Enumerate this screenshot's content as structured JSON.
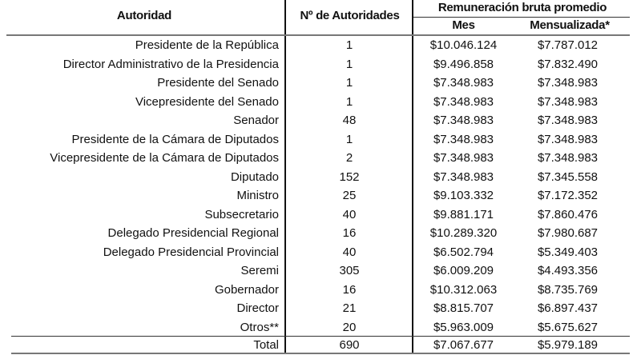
{
  "header": {
    "autoridad": "Autoridad",
    "n_autoridades": "Nº de Autoridades",
    "remuneracion": "Remuneración bruta promedio",
    "mes": "Mes",
    "mensualizada": "Mensualizada*"
  },
  "rows": [
    {
      "autoridad": "Presidente de la República",
      "n": "1",
      "mes": "$10.046.124",
      "mensualizada": "$7.787.012"
    },
    {
      "autoridad": "Director Administrativo de la Presidencia",
      "n": "1",
      "mes": "$9.496.858",
      "mensualizada": "$7.832.490"
    },
    {
      "autoridad": "Presidente del Senado",
      "n": "1",
      "mes": "$7.348.983",
      "mensualizada": "$7.348.983"
    },
    {
      "autoridad": "Vicepresidente del Senado",
      "n": "1",
      "mes": "$7.348.983",
      "mensualizada": "$7.348.983"
    },
    {
      "autoridad": "Senador",
      "n": "48",
      "mes": "$7.348.983",
      "mensualizada": "$7.348.983"
    },
    {
      "autoridad": "Presidente de la Cámara de Diputados",
      "n": "1",
      "mes": "$7.348.983",
      "mensualizada": "$7.348.983"
    },
    {
      "autoridad": "Vicepresidente de la Cámara de Diputados",
      "n": "2",
      "mes": "$7.348.983",
      "mensualizada": "$7.348.983"
    },
    {
      "autoridad": "Diputado",
      "n": "152",
      "mes": "$7.348.983",
      "mensualizada": "$7.345.558"
    },
    {
      "autoridad": "Ministro",
      "n": "25",
      "mes": "$9.103.332",
      "mensualizada": "$7.172.352"
    },
    {
      "autoridad": "Subsecretario",
      "n": "40",
      "mes": "$9.881.171",
      "mensualizada": "$7.860.476"
    },
    {
      "autoridad": "Delegado Presidencial Regional",
      "n": "16",
      "mes": "$10.289.320",
      "mensualizada": "$7.980.687"
    },
    {
      "autoridad": "Delegado Presidencial Provincial",
      "n": "40",
      "mes": "$6.502.794",
      "mensualizada": "$5.349.403"
    },
    {
      "autoridad": "Seremi",
      "n": "305",
      "mes": "$6.009.209",
      "mensualizada": "$4.493.356"
    },
    {
      "autoridad": "Gobernador",
      "n": "16",
      "mes": "$10.312.063",
      "mensualizada": "$8.735.769"
    },
    {
      "autoridad": "Director",
      "n": "21",
      "mes": "$8.815.707",
      "mensualizada": "$6.897.437"
    },
    {
      "autoridad": "Otros**",
      "n": "20",
      "mes": "$5.963.009",
      "mensualizada": "$5.675.627"
    }
  ],
  "total": {
    "autoridad": "Total",
    "n": "690",
    "mes": "$7.067.677",
    "mensualizada": "$5.979.189"
  }
}
